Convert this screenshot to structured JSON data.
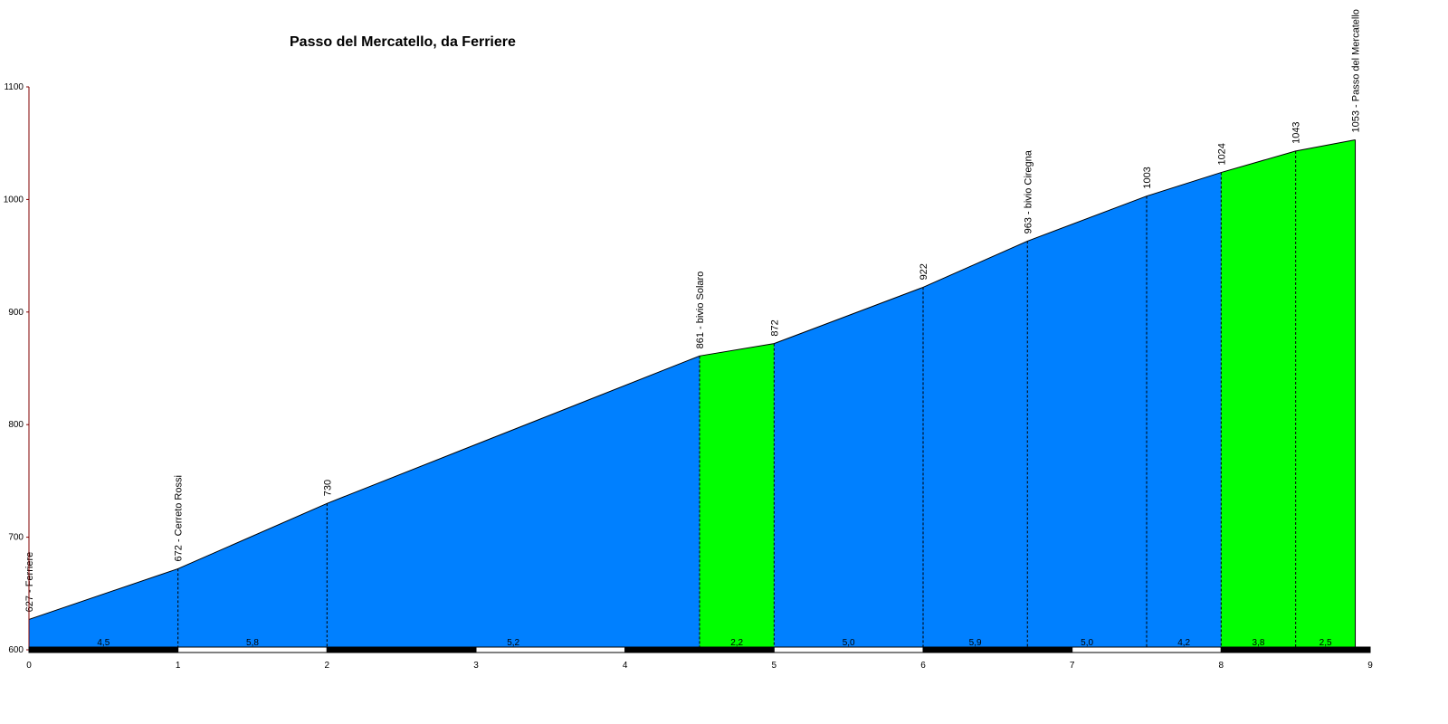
{
  "chart_data": {
    "type": "area",
    "title": "Passo del Mercatello, da Ferriere",
    "xlabel": "",
    "ylabel": "",
    "xlim": [
      0,
      9
    ],
    "ylim": [
      600,
      1100
    ],
    "x_ticks": [
      "0",
      "1",
      "2",
      "3",
      "4",
      "5",
      "6",
      "7",
      "8",
      "9"
    ],
    "y_ticks": [
      "600",
      "700",
      "800",
      "900",
      "1000",
      "1100"
    ],
    "profile": [
      {
        "km": 0,
        "alt": 627
      },
      {
        "km": 1,
        "alt": 672
      },
      {
        "km": 2,
        "alt": 730
      },
      {
        "km": 4.5,
        "alt": 861
      },
      {
        "km": 5,
        "alt": 872
      },
      {
        "km": 6,
        "alt": 922
      },
      {
        "km": 6.7,
        "alt": 963
      },
      {
        "km": 7.5,
        "alt": 1003
      },
      {
        "km": 8,
        "alt": 1024
      },
      {
        "km": 8.5,
        "alt": 1043
      },
      {
        "km": 8.9,
        "alt": 1053
      }
    ],
    "point_labels": [
      {
        "km": 0,
        "text": "627 - Ferriere"
      },
      {
        "km": 1,
        "text": "672 - Cerreto Rossi"
      },
      {
        "km": 2,
        "text": "730"
      },
      {
        "km": 4.5,
        "text": "861 - bivio Solaro"
      },
      {
        "km": 5,
        "text": "872"
      },
      {
        "km": 6,
        "text": "922"
      },
      {
        "km": 6.7,
        "text": "963 - bivio Ciregna"
      },
      {
        "km": 7.5,
        "text": "1003"
      },
      {
        "km": 8,
        "text": "1024"
      },
      {
        "km": 8.5,
        "text": "1043"
      },
      {
        "km": 8.9,
        "text": "1053 - Passo del Mercatello"
      }
    ],
    "segments": [
      {
        "from": 0,
        "to": 1,
        "grade": "4,5",
        "color": "#0080ff"
      },
      {
        "from": 1,
        "to": 2,
        "grade": "5,8",
        "color": "#0080ff"
      },
      {
        "from": 2,
        "to": 4.5,
        "grade": "5,2",
        "color": "#0080ff"
      },
      {
        "from": 4.5,
        "to": 5,
        "grade": "2,2",
        "color": "#00ff00"
      },
      {
        "from": 5,
        "to": 6,
        "grade": "5,0",
        "color": "#0080ff"
      },
      {
        "from": 6,
        "to": 6.7,
        "grade": "5,9",
        "color": "#0080ff"
      },
      {
        "from": 6.7,
        "to": 7.5,
        "grade": "5,0",
        "color": "#0080ff"
      },
      {
        "from": 7.5,
        "to": 8,
        "grade": "4,2",
        "color": "#0080ff"
      },
      {
        "from": 8,
        "to": 8.5,
        "grade": "3,8",
        "color": "#00ff00"
      },
      {
        "from": 8.5,
        "to": 8.9,
        "grade": "2,5",
        "color": "#00ff00"
      }
    ],
    "colors": {
      "steep": "#0080ff",
      "gentle": "#00ff00",
      "axis": "#800000"
    }
  }
}
